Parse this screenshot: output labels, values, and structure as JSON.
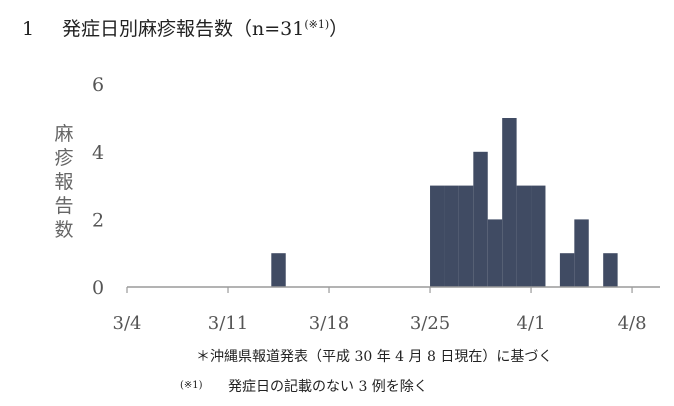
{
  "heading": {
    "number": "1",
    "title": "発症日別麻疹報告数（n=31",
    "footnote_ref": "(※1)",
    "close": "）"
  },
  "chart_data": {
    "type": "bar",
    "title": "",
    "ylabel": "麻疹報告数",
    "xlabel": "",
    "ylim": [
      0,
      6
    ],
    "yticks": [
      0,
      2,
      4,
      6
    ],
    "xticks": [
      "3/4",
      "3/11",
      "3/18",
      "3/25",
      "4/1",
      "4/8"
    ],
    "x_start": "3/4",
    "x_end": "4/10",
    "grid": false,
    "bar_color": "#404b63",
    "categories": [
      "3/14",
      "3/25",
      "3/26",
      "3/27",
      "3/28",
      "3/29",
      "3/30",
      "3/31",
      "4/1",
      "4/3",
      "4/4",
      "4/6"
    ],
    "values": [
      1,
      3,
      3,
      3,
      4,
      2,
      5,
      3,
      3,
      1,
      2,
      1
    ]
  },
  "notes": {
    "line1": "＊沖縄県報道発表（平成 30 年 4 月 8 日現在）に基づく",
    "line2_mark": "(※1)",
    "line2_text": "発症日の記載のない 3 例を除く"
  }
}
